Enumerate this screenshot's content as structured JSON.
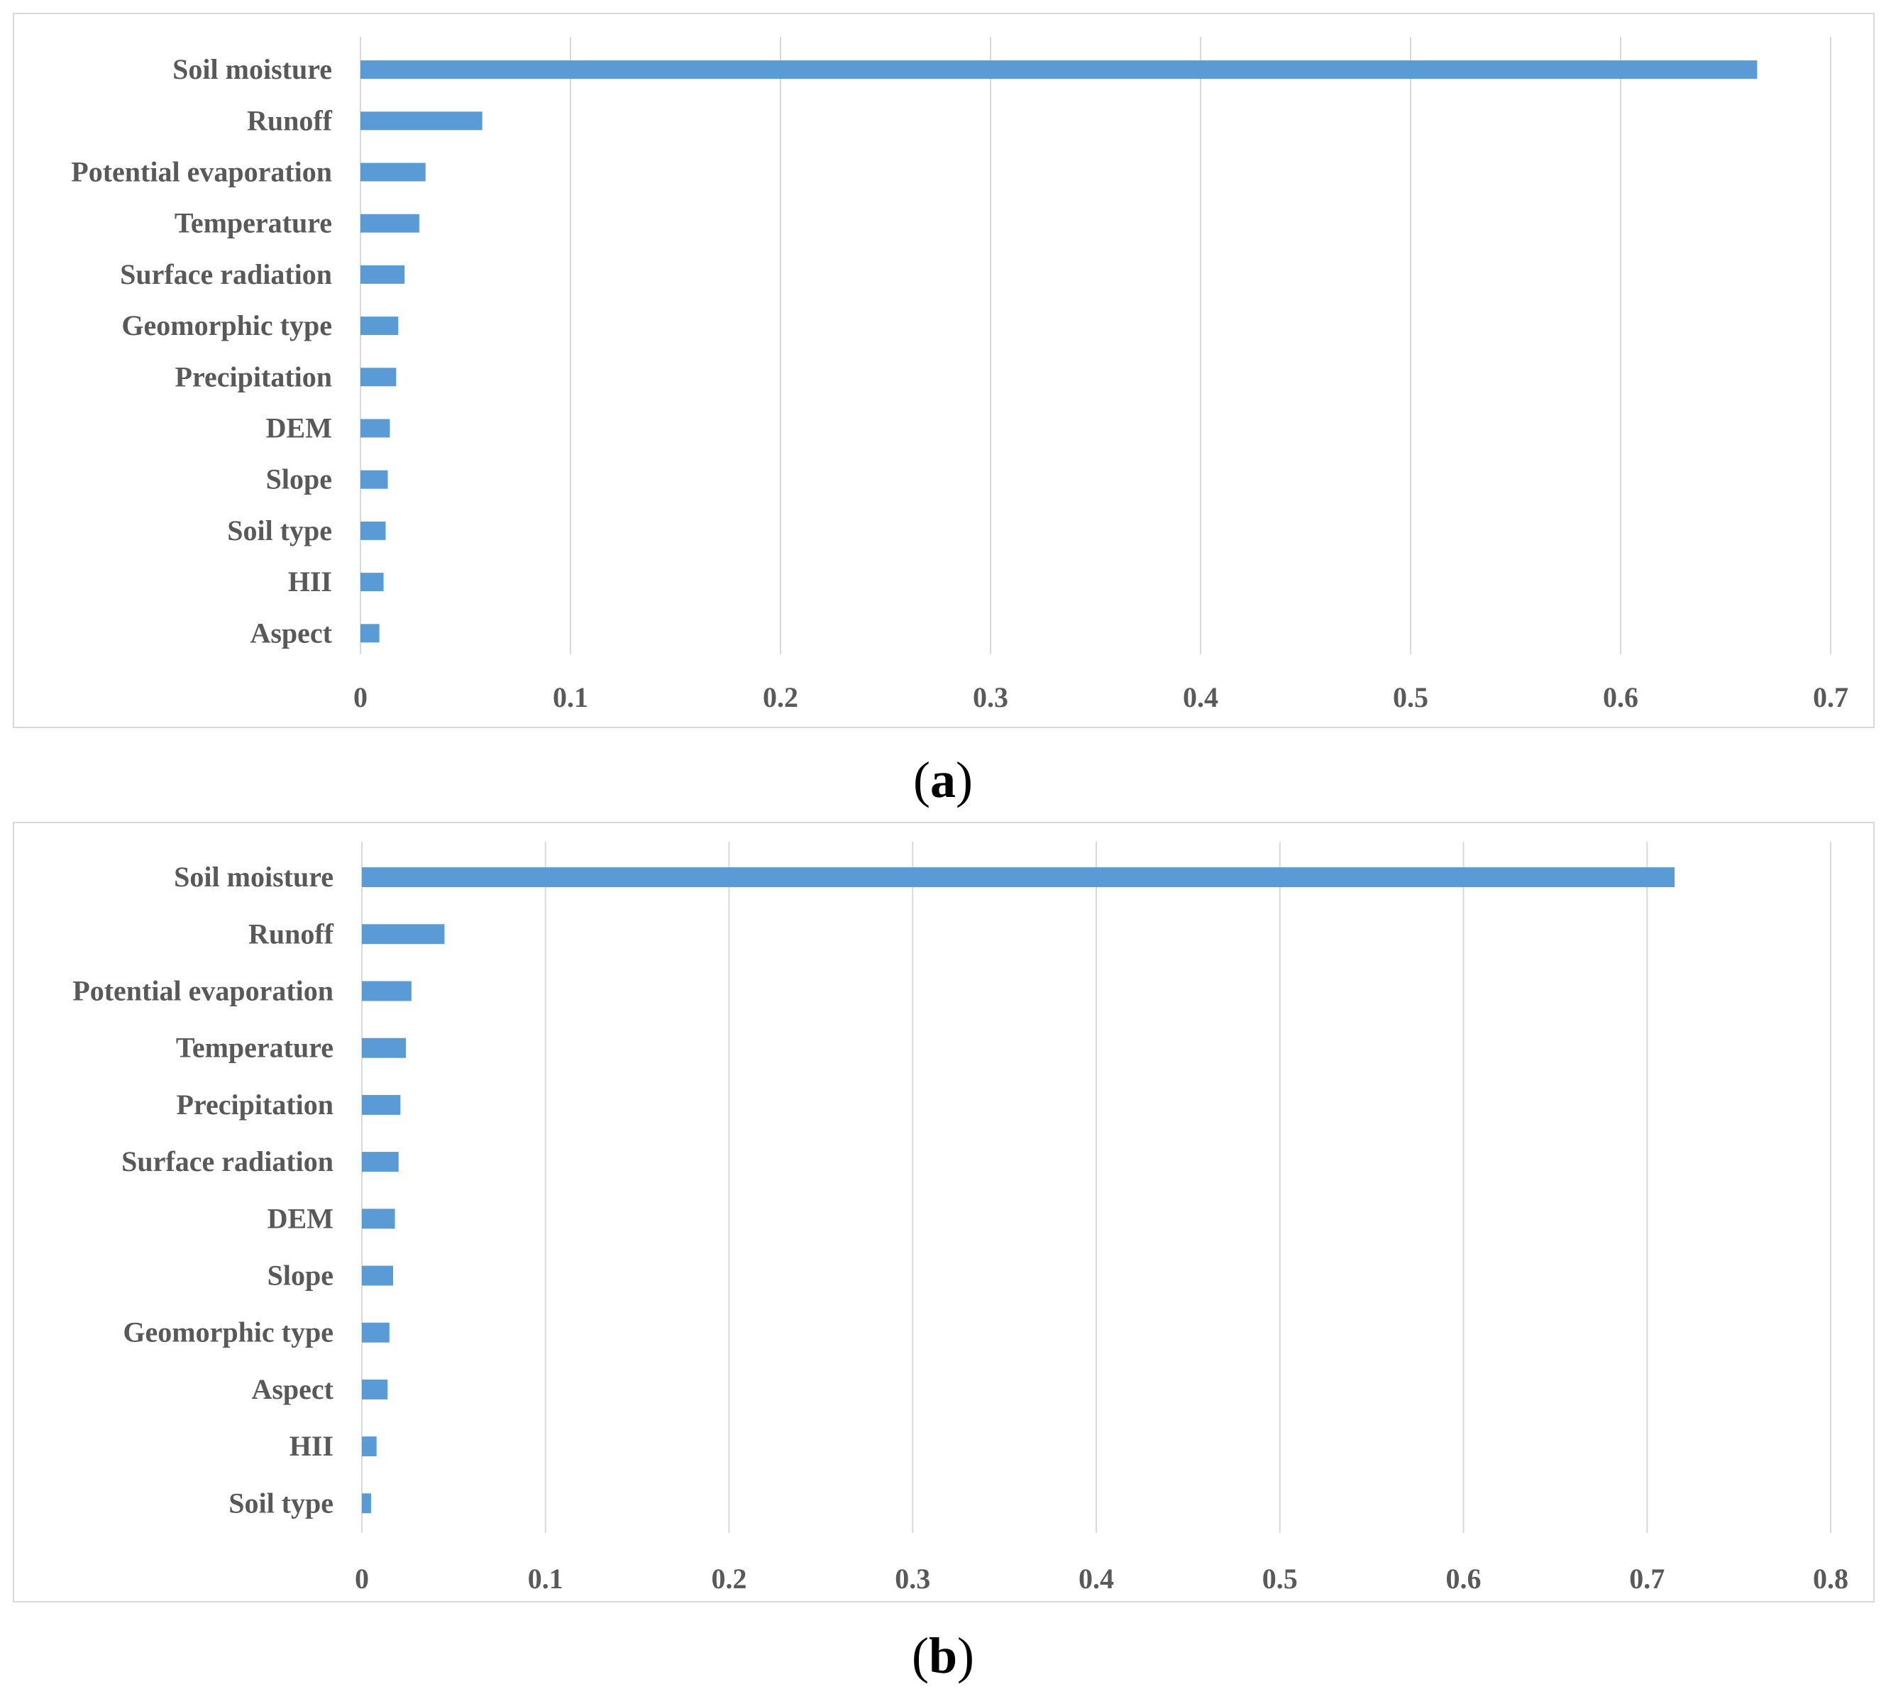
{
  "bar_color": "#5b9bd5",
  "grid_color": "#d9d9d9",
  "label_color": "#595959",
  "chart_data": [
    {
      "type": "bar",
      "orientation": "horizontal",
      "panel_label": "a",
      "categories": [
        "Soil moisture",
        "Runoff",
        "Potential evaporation",
        "Temperature",
        "Surface radiation",
        "Geomorphic type",
        "Precipitation",
        "DEM",
        "Slope",
        "Soil type",
        "HII",
        "Aspect"
      ],
      "values": [
        0.665,
        0.058,
        0.031,
        0.028,
        0.021,
        0.018,
        0.017,
        0.014,
        0.013,
        0.012,
        0.011,
        0.009
      ],
      "xlim": [
        0,
        0.7
      ],
      "ticks": [
        "0",
        "0.1",
        "0.2",
        "0.3",
        "0.4",
        "0.5",
        "0.6",
        "0.7"
      ],
      "tick_values": [
        0,
        0.1,
        0.2,
        0.3,
        0.4,
        0.5,
        0.6,
        0.7
      ],
      "grid": true
    },
    {
      "type": "bar",
      "orientation": "horizontal",
      "panel_label": "b",
      "categories": [
        "Soil moisture",
        "Runoff",
        "Potential evaporation",
        "Temperature",
        "Precipitation",
        "Surface radiation",
        "DEM",
        "Slope",
        "Geomorphic type",
        "Aspect",
        "HII",
        "Soil type"
      ],
      "values": [
        0.715,
        0.045,
        0.027,
        0.024,
        0.021,
        0.02,
        0.018,
        0.017,
        0.015,
        0.014,
        0.008,
        0.005
      ],
      "xlim": [
        0,
        0.8
      ],
      "ticks": [
        "0",
        "0.1",
        "0.2",
        "0.3",
        "0.4",
        "0.5",
        "0.6",
        "0.7",
        "0.8"
      ],
      "tick_values": [
        0,
        0.1,
        0.2,
        0.3,
        0.4,
        0.5,
        0.6,
        0.7,
        0.8
      ],
      "grid": true
    }
  ],
  "captions": {
    "a": {
      "open": "(",
      "letter": "a",
      "close": ")"
    },
    "b": {
      "open": "(",
      "letter": "b",
      "close": ")"
    }
  }
}
